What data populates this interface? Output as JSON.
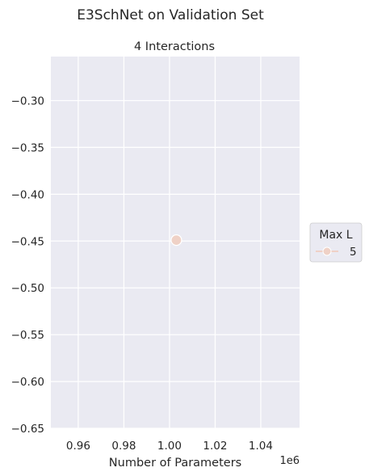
{
  "figure": {
    "suptitle": "E3SchNet on Validation Set"
  },
  "chart_data": {
    "type": "scatter",
    "title": "4 Interactions",
    "xlabel": "Number of Parameters",
    "ylabel": "",
    "x_offset_text": "1e6",
    "xlim": [
      0.948,
      1.057
    ],
    "ylim": [
      -0.65,
      -0.253
    ],
    "x_ticks": [
      0.96,
      0.98,
      1.0,
      1.02,
      1.04
    ],
    "x_tick_labels": [
      "0.96",
      "0.98",
      "1.00",
      "1.02",
      "1.04"
    ],
    "y_ticks": [
      -0.3,
      -0.35,
      -0.4,
      -0.45,
      -0.5,
      -0.55,
      -0.6,
      -0.65
    ],
    "y_tick_labels": [
      "−0.30",
      "−0.35",
      "−0.40",
      "−0.45",
      "−0.50",
      "−0.55",
      "−0.60",
      "−0.65"
    ],
    "grid": true,
    "background": "#eaeaf2",
    "legend": {
      "title": "Max L",
      "placement": "outside-right",
      "entries": [
        {
          "label": "5",
          "color": "#efd1c6"
        }
      ]
    },
    "series": [
      {
        "name": "5",
        "color": "#efd1c6",
        "points": [
          {
            "x": 1.003,
            "y": -0.449
          }
        ]
      }
    ]
  }
}
